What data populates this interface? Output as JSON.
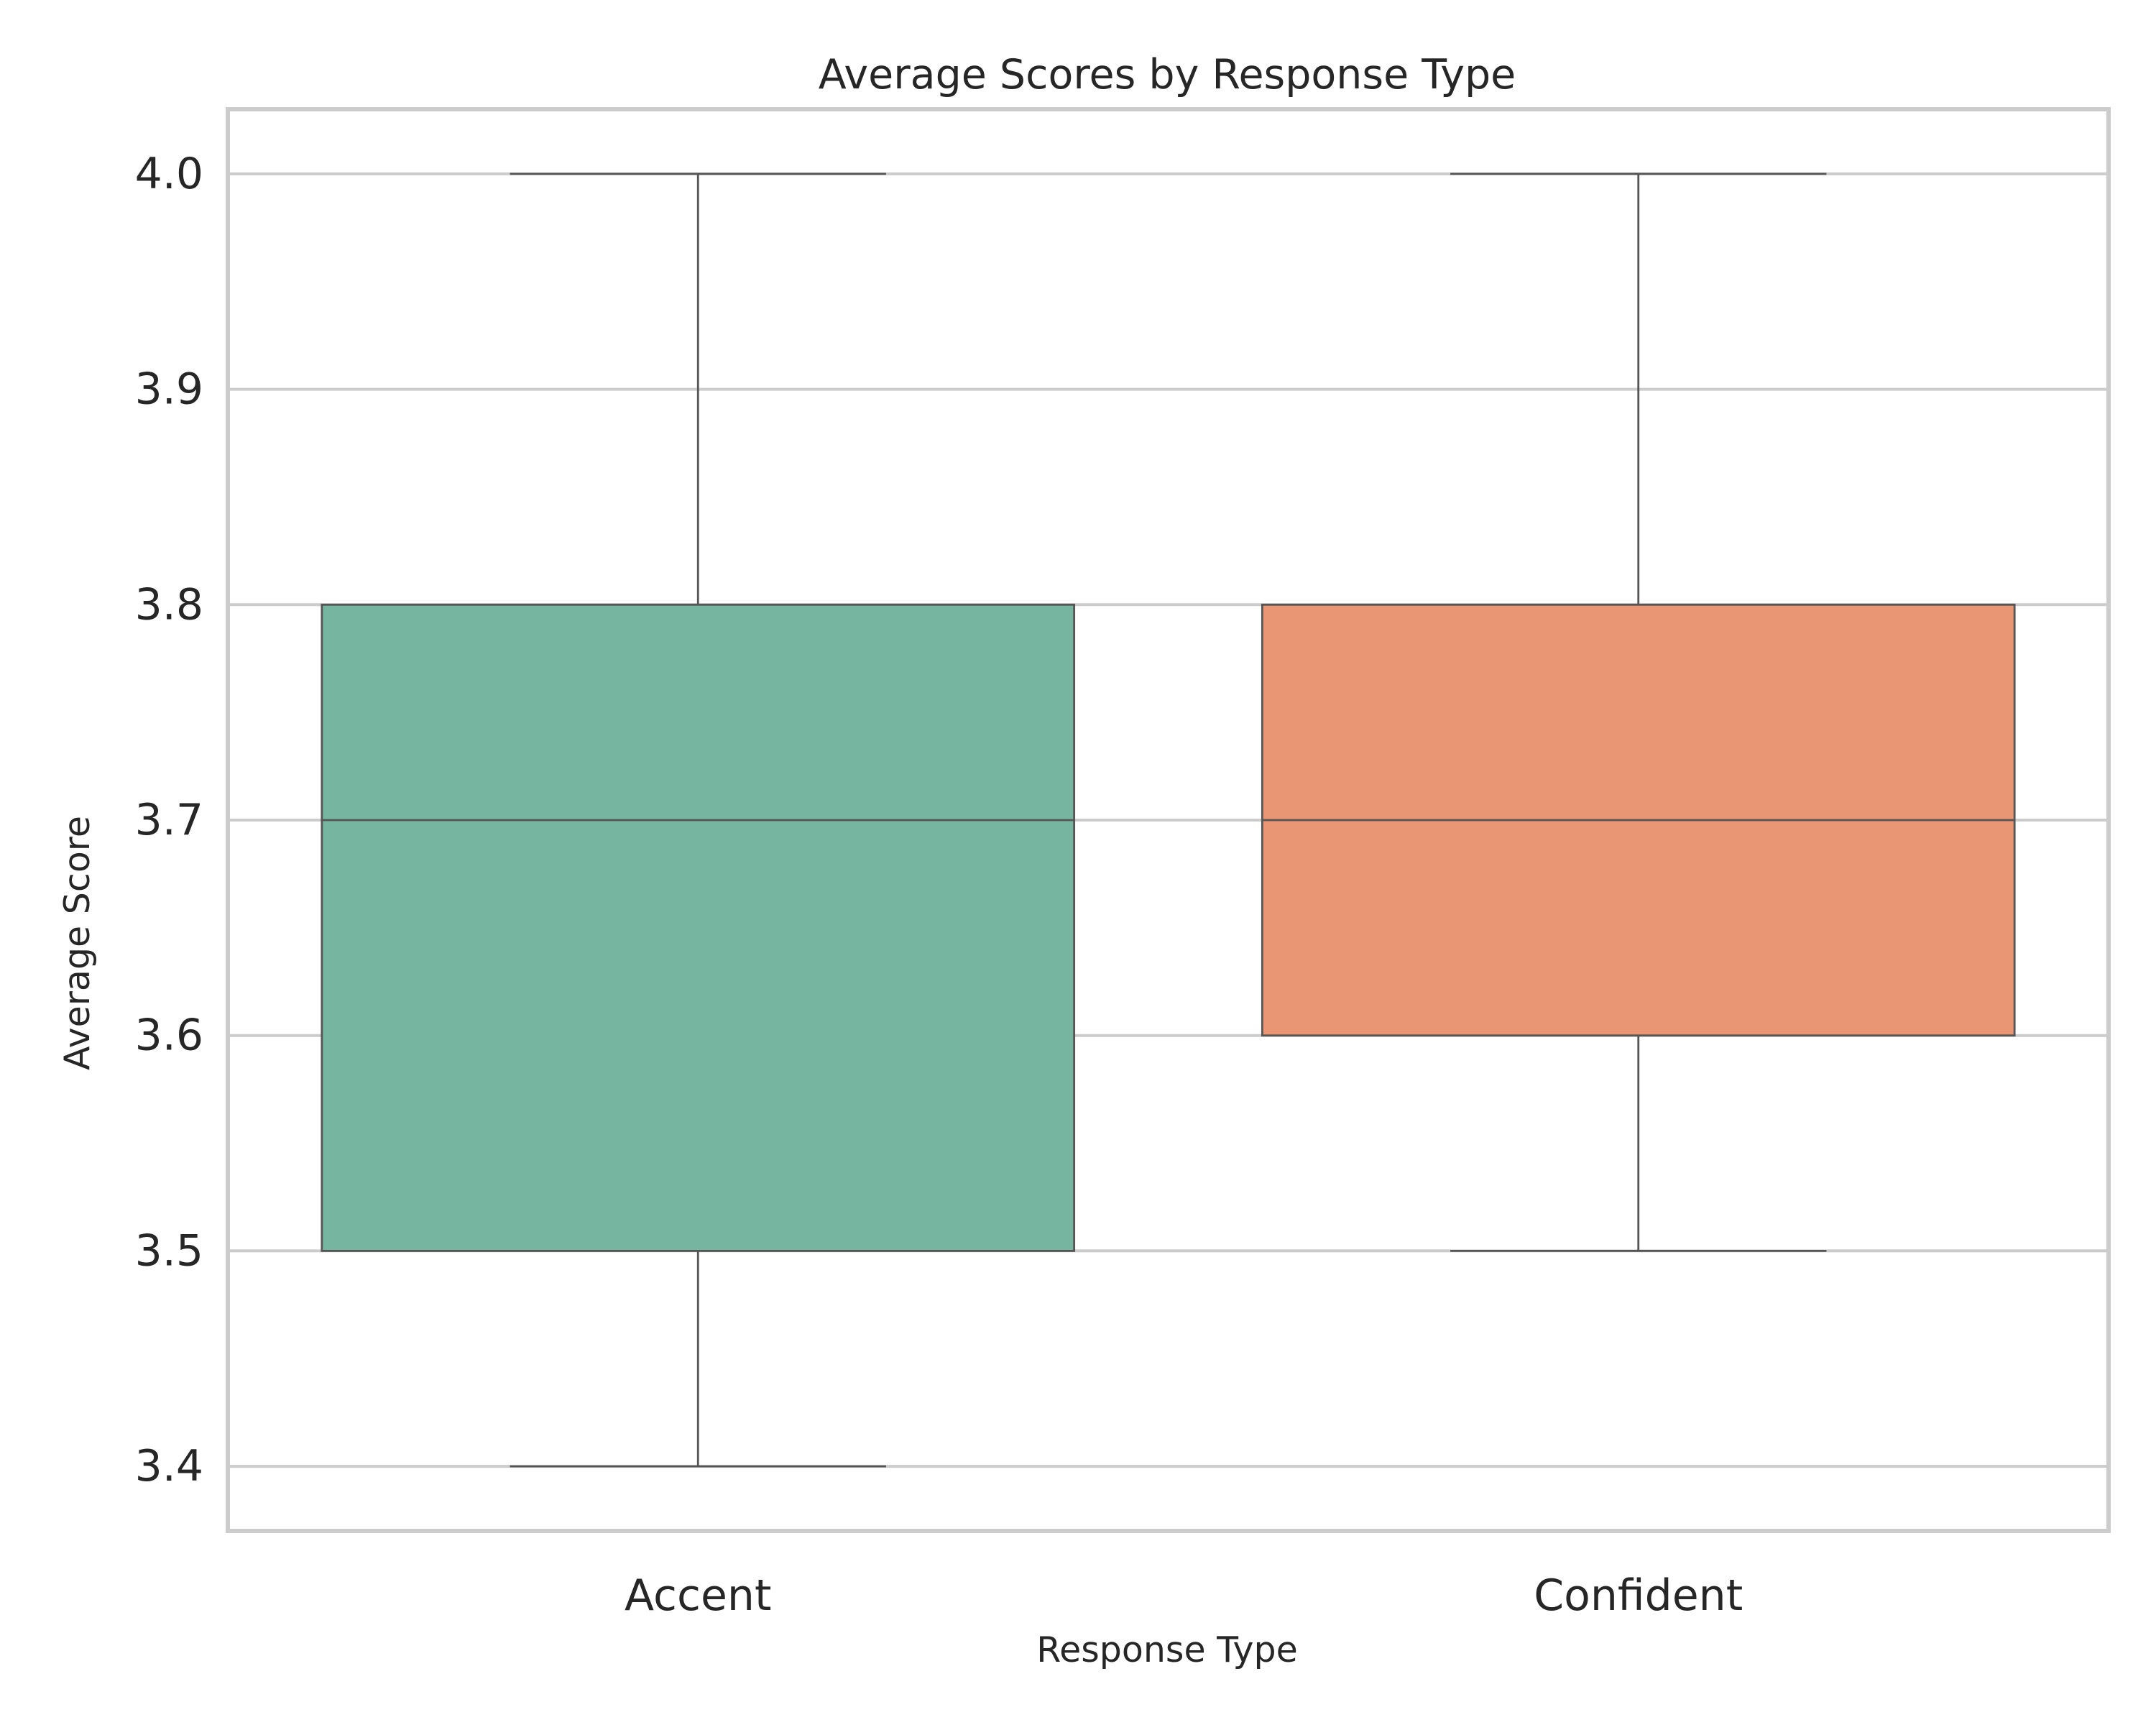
{
  "chart_data": {
    "type": "box",
    "title": "Average Scores by Response Type",
    "xlabel": "Response Type",
    "ylabel": "Average Score",
    "categories": [
      "Accent",
      "Confident"
    ],
    "series": [
      {
        "category": "Accent",
        "color": "#76b5a0",
        "min": 3.4,
        "q1": 3.5,
        "median": 3.7,
        "q3": 3.8,
        "max": 4.0
      },
      {
        "category": "Confident",
        "color": "#e99675",
        "min": 3.5,
        "q1": 3.6,
        "median": 3.7,
        "q3": 3.8,
        "max": 4.0
      }
    ],
    "yticks": [
      3.4,
      3.5,
      3.6,
      3.7,
      3.8,
      3.9,
      4.0
    ],
    "ytick_labels": [
      "3.4",
      "3.5",
      "3.6",
      "3.7",
      "3.8",
      "3.9",
      "4.0"
    ],
    "ylim": [
      3.37,
      4.03
    ],
    "grid": "horizontal",
    "legend": "none",
    "colors": {
      "grid": "#cccccc",
      "frame": "#cccccc",
      "box_edge": "#555555",
      "text": "#262626"
    }
  }
}
